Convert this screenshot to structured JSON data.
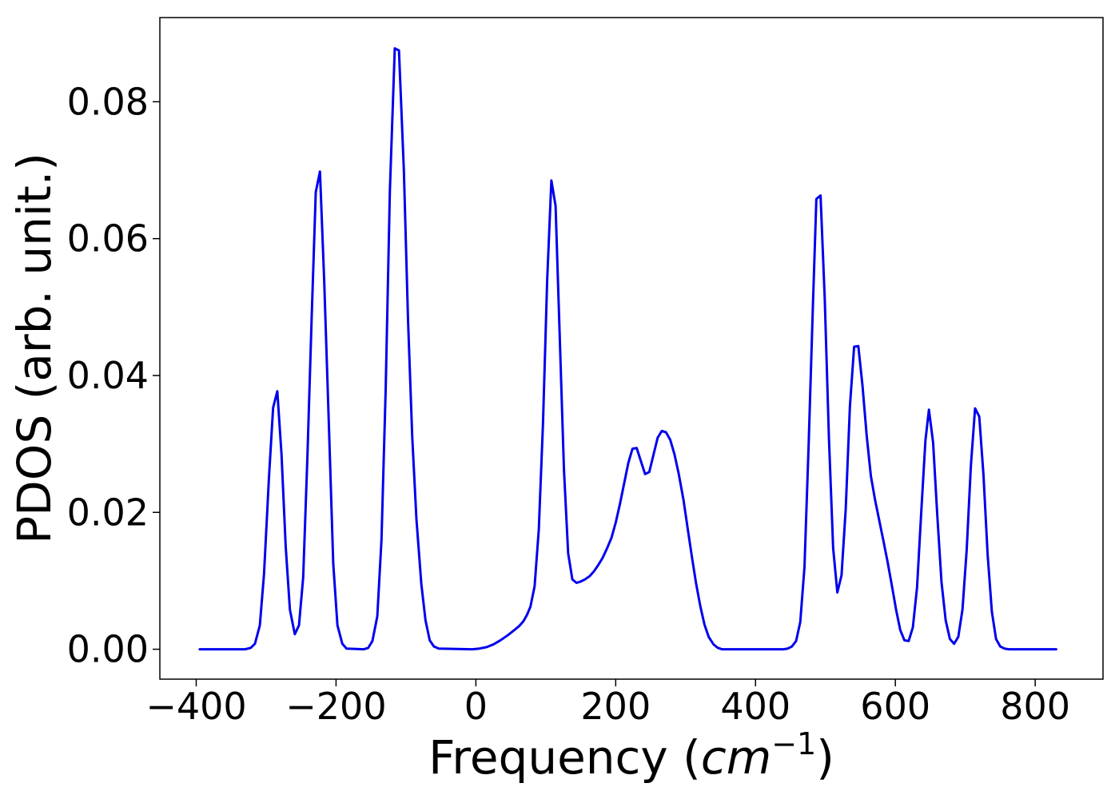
{
  "chart_data": {
    "type": "line",
    "title": "",
    "xlabel": {
      "prefix": "Frequency (",
      "unit_base": "cm",
      "unit_exponent": "−1",
      "suffix": ")"
    },
    "ylabel": "PDOS (arb. unit.)",
    "xlim": [
      -452,
      897
    ],
    "ylim": [
      -0.00437,
      0.0923
    ],
    "x_ticks": [
      -400,
      -200,
      0,
      200,
      400,
      600,
      800
    ],
    "x_tick_labels": [
      "−400",
      "−200",
      "0",
      "200",
      "400",
      "600",
      "800"
    ],
    "y_ticks": [
      0.0,
      0.02,
      0.04,
      0.06,
      0.08
    ],
    "y_tick_labels": [
      "0.00",
      "0.02",
      "0.04",
      "0.06",
      "0.08"
    ],
    "grid": false,
    "legend": false,
    "line_color": "#0000ee",
    "series": [
      {
        "points": [
          [
            -395,
            0.0
          ],
          [
            -330,
            0.0
          ],
          [
            -322,
            0.0002
          ],
          [
            -316,
            0.0008
          ],
          [
            -309,
            0.0035
          ],
          [
            -303,
            0.011
          ],
          [
            -296,
            0.025
          ],
          [
            -290,
            0.0353
          ],
          [
            -284,
            0.0377
          ],
          [
            -278,
            0.0285
          ],
          [
            -272,
            0.015
          ],
          [
            -266,
            0.0058
          ],
          [
            -259,
            0.0022
          ],
          [
            -253,
            0.0035
          ],
          [
            -247,
            0.0105
          ],
          [
            -241,
            0.028
          ],
          [
            -235,
            0.048
          ],
          [
            -229,
            0.0668
          ],
          [
            -223,
            0.0698
          ],
          [
            -217,
            0.054
          ],
          [
            -210,
            0.032
          ],
          [
            -204,
            0.0125
          ],
          [
            -198,
            0.0035
          ],
          [
            -191,
            0.0008
          ],
          [
            -185,
            0.0001
          ],
          [
            -160,
            0.0
          ],
          [
            -154,
            0.0002
          ],
          [
            -148,
            0.0012
          ],
          [
            -141,
            0.0048
          ],
          [
            -135,
            0.016
          ],
          [
            -129,
            0.038
          ],
          [
            -123,
            0.067
          ],
          [
            -116,
            0.0878
          ],
          [
            -110,
            0.0875
          ],
          [
            -103,
            0.07
          ],
          [
            -97,
            0.048
          ],
          [
            -91,
            0.031
          ],
          [
            -85,
            0.019
          ],
          [
            -78,
            0.0095
          ],
          [
            -72,
            0.0042
          ],
          [
            -66,
            0.0013
          ],
          [
            -60,
            0.0004
          ],
          [
            -53,
            0.0001
          ],
          [
            -5,
            0.0
          ],
          [
            5,
            0.0001
          ],
          [
            15,
            0.0003
          ],
          [
            25,
            0.0007
          ],
          [
            35,
            0.0013
          ],
          [
            45,
            0.002
          ],
          [
            55,
            0.0028
          ],
          [
            62,
            0.0034
          ],
          [
            68,
            0.0041
          ],
          [
            73,
            0.005
          ],
          [
            78,
            0.0062
          ],
          [
            84,
            0.0092
          ],
          [
            90,
            0.0175
          ],
          [
            96,
            0.033
          ],
          [
            102,
            0.054
          ],
          [
            108,
            0.0685
          ],
          [
            114,
            0.0648
          ],
          [
            120,
            0.0455
          ],
          [
            126,
            0.0262
          ],
          [
            132,
            0.014
          ],
          [
            138,
            0.0102
          ],
          [
            144,
            0.0097
          ],
          [
            150,
            0.0099
          ],
          [
            156,
            0.0102
          ],
          [
            163,
            0.0107
          ],
          [
            169,
            0.0114
          ],
          [
            175,
            0.0123
          ],
          [
            181,
            0.0133
          ],
          [
            187,
            0.0146
          ],
          [
            194,
            0.0163
          ],
          [
            200,
            0.0185
          ],
          [
            206,
            0.0212
          ],
          [
            212,
            0.0242
          ],
          [
            218,
            0.0272
          ],
          [
            224,
            0.0293
          ],
          [
            230,
            0.0294
          ],
          [
            236,
            0.0275
          ],
          [
            242,
            0.0256
          ],
          [
            248,
            0.0259
          ],
          [
            254,
            0.0284
          ],
          [
            260,
            0.0309
          ],
          [
            266,
            0.0319
          ],
          [
            272,
            0.0317
          ],
          [
            278,
            0.0306
          ],
          [
            284,
            0.0285
          ],
          [
            290,
            0.0257
          ],
          [
            297,
            0.0218
          ],
          [
            303,
            0.0176
          ],
          [
            309,
            0.0135
          ],
          [
            315,
            0.0096
          ],
          [
            321,
            0.0063
          ],
          [
            327,
            0.0036
          ],
          [
            333,
            0.0018
          ],
          [
            340,
            0.0007
          ],
          [
            346,
            0.0002
          ],
          [
            352,
            0.0
          ],
          [
            440,
            0.0
          ],
          [
            446,
            0.0001
          ],
          [
            452,
            0.0004
          ],
          [
            458,
            0.0012
          ],
          [
            464,
            0.004
          ],
          [
            470,
            0.012
          ],
          [
            476,
            0.03
          ],
          [
            482,
            0.05
          ],
          [
            487,
            0.0658
          ],
          [
            493,
            0.0663
          ],
          [
            499,
            0.0512
          ],
          [
            505,
            0.0308
          ],
          [
            511,
            0.0148
          ],
          [
            517,
            0.0083
          ],
          [
            523,
            0.0108
          ],
          [
            529,
            0.0205
          ],
          [
            535,
            0.0355
          ],
          [
            541,
            0.0442
          ],
          [
            547,
            0.0443
          ],
          [
            553,
            0.0385
          ],
          [
            559,
            0.0312
          ],
          [
            565,
            0.0253
          ],
          [
            571,
            0.0218
          ],
          [
            577,
            0.0188
          ],
          [
            583,
            0.0158
          ],
          [
            589,
            0.0127
          ],
          [
            595,
            0.0093
          ],
          [
            601,
            0.0058
          ],
          [
            607,
            0.0028
          ],
          [
            613,
            0.0013
          ],
          [
            619,
            0.0012
          ],
          [
            625,
            0.0032
          ],
          [
            631,
            0.009
          ],
          [
            637,
            0.02
          ],
          [
            643,
            0.0305
          ],
          [
            648,
            0.035
          ],
          [
            654,
            0.0302
          ],
          [
            660,
            0.0195
          ],
          [
            666,
            0.0098
          ],
          [
            672,
            0.0042
          ],
          [
            678,
            0.0015
          ],
          [
            684,
            0.0008
          ],
          [
            690,
            0.0018
          ],
          [
            696,
            0.0058
          ],
          [
            702,
            0.0145
          ],
          [
            708,
            0.0268
          ],
          [
            714,
            0.0352
          ],
          [
            720,
            0.034
          ],
          [
            726,
            0.0255
          ],
          [
            732,
            0.0138
          ],
          [
            738,
            0.0055
          ],
          [
            744,
            0.0015
          ],
          [
            750,
            0.0004
          ],
          [
            756,
            0.0001
          ],
          [
            762,
            0.0
          ],
          [
            830,
            0.0
          ]
        ]
      }
    ]
  }
}
